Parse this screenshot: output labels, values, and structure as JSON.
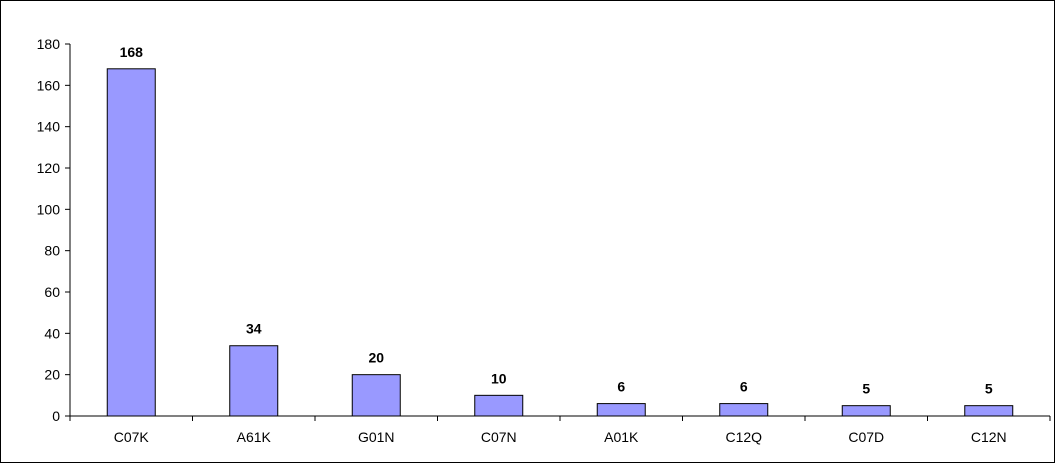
{
  "chart_data": {
    "type": "bar",
    "categories": [
      "C07K",
      "A61K",
      "G01N",
      "C07N",
      "A01K",
      "C12Q",
      "C07D",
      "C12N"
    ],
    "values": [
      168,
      34,
      20,
      10,
      6,
      6,
      5,
      5
    ],
    "data_labels": [
      "168",
      "34",
      "20",
      "10",
      "6",
      "6",
      "5",
      "5"
    ],
    "yticks": [
      "0",
      "20",
      "40",
      "60",
      "80",
      "100",
      "120",
      "140",
      "160",
      "180"
    ],
    "ylim": [
      0,
      180
    ],
    "grid": false,
    "legend": "none",
    "bar_color": "#9999ff",
    "bar_edge_color": "#000000"
  }
}
